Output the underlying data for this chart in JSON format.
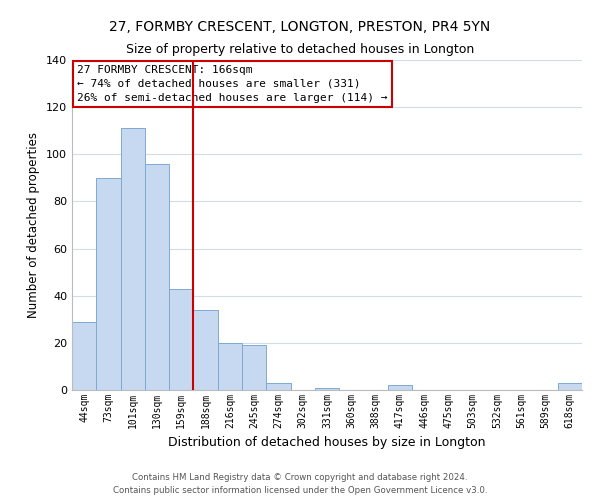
{
  "title_line1": "27, FORMBY CRESCENT, LONGTON, PRESTON, PR4 5YN",
  "title_line2": "Size of property relative to detached houses in Longton",
  "xlabel": "Distribution of detached houses by size in Longton",
  "ylabel": "Number of detached properties",
  "bin_labels": [
    "44sqm",
    "73sqm",
    "101sqm",
    "130sqm",
    "159sqm",
    "188sqm",
    "216sqm",
    "245sqm",
    "274sqm",
    "302sqm",
    "331sqm",
    "360sqm",
    "388sqm",
    "417sqm",
    "446sqm",
    "475sqm",
    "503sqm",
    "532sqm",
    "561sqm",
    "589sqm",
    "618sqm"
  ],
  "bar_heights": [
    29,
    90,
    111,
    96,
    43,
    34,
    20,
    19,
    3,
    0,
    1,
    0,
    0,
    2,
    0,
    0,
    0,
    0,
    0,
    0,
    3
  ],
  "bar_color": "#c6d9f0",
  "bar_edge_color": "#7ea9d1",
  "vline_x": 4.5,
  "vline_color": "#cc0000",
  "annotation_title": "27 FORMBY CRESCENT: 166sqm",
  "annotation_line1": "← 74% of detached houses are smaller (331)",
  "annotation_line2": "26% of semi-detached houses are larger (114) →",
  "annotation_box_color": "#ffffff",
  "annotation_box_edge_color": "#cc0000",
  "ylim": [
    0,
    140
  ],
  "yticks": [
    0,
    20,
    40,
    60,
    80,
    100,
    120,
    140
  ],
  "footer_line1": "Contains HM Land Registry data © Crown copyright and database right 2024.",
  "footer_line2": "Contains public sector information licensed under the Open Government Licence v3.0.",
  "bg_color": "#ffffff",
  "grid_color": "#d0dce8",
  "title_fontsize": 10,
  "subtitle_fontsize": 9
}
